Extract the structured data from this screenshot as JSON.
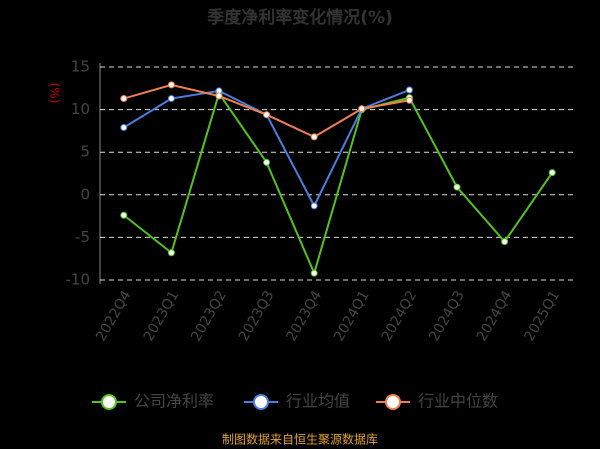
{
  "chart_data": {
    "type": "line",
    "title": "季度净利率变化情况(%)",
    "y_label": "(%)",
    "footer": "制图数据来自恒生聚源数据库",
    "categories": [
      "2022Q4",
      "2023Q1",
      "2023Q2",
      "2023Q3",
      "2023Q4",
      "2024Q1",
      "2024Q2",
      "2024Q3",
      "2024Q4",
      "2025Q1"
    ],
    "series": [
      {
        "name": "公司净利率",
        "color": "#52c41a",
        "values": [
          -2.4,
          -6.8,
          11.9,
          3.8,
          -9.2,
          10.0,
          11.4,
          0.9,
          -5.5,
          2.6
        ]
      },
      {
        "name": "行业均值",
        "color": "#4a7fe0",
        "values": [
          7.9,
          11.3,
          12.2,
          9.4,
          -1.3,
          10.1,
          12.3,
          null,
          null,
          null
        ]
      },
      {
        "name": "行业中位数",
        "color": "#f08050",
        "values": [
          11.3,
          12.9,
          11.6,
          9.4,
          6.8,
          10.1,
          11.1,
          null,
          null,
          null
        ]
      }
    ],
    "ylim": [
      -10,
      15
    ],
    "yticks": [
      15,
      10,
      5,
      0,
      -5,
      -10
    ],
    "grid": true
  }
}
